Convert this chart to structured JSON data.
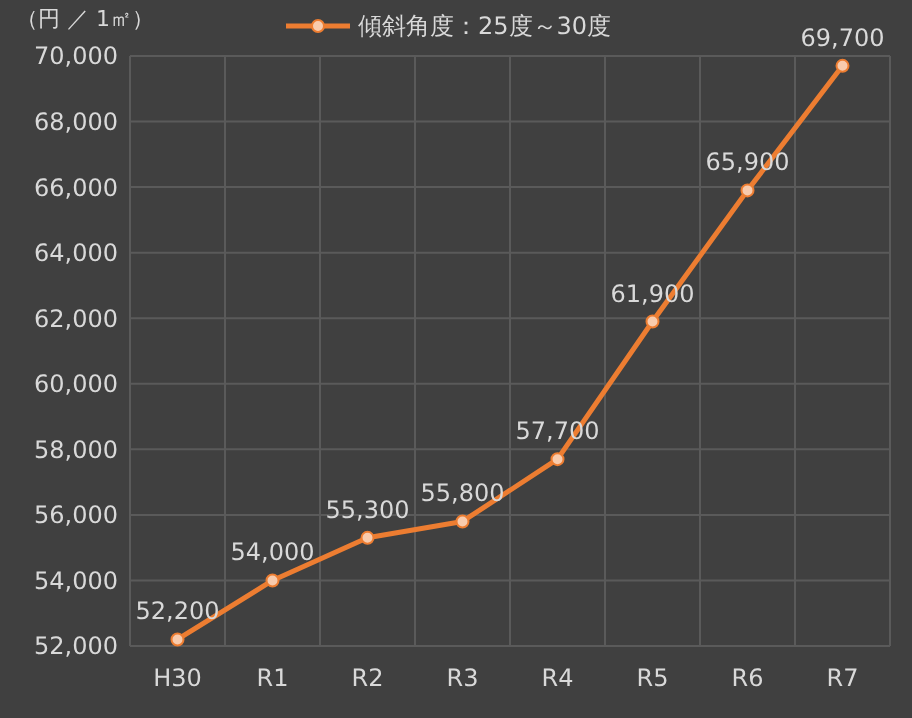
{
  "chart_data": {
    "type": "line",
    "ylabel": "（円 ／ 1㎡）",
    "categories": [
      "H30",
      "R1",
      "R2",
      "R3",
      "R4",
      "R5",
      "R6",
      "R7"
    ],
    "series": [
      {
        "name": "傾斜角度：25度～30度",
        "color": "#ed7d31",
        "values": [
          52200,
          54000,
          55300,
          55800,
          57700,
          61900,
          65900,
          69700
        ]
      }
    ],
    "ylim": [
      52000,
      70000
    ],
    "yticks": [
      {
        "value": 52000,
        "label": "52,000"
      },
      {
        "value": 54000,
        "label": "54,000"
      },
      {
        "value": 56000,
        "label": "56,000"
      },
      {
        "value": 58000,
        "label": "58,000"
      },
      {
        "value": 60000,
        "label": "60,000"
      },
      {
        "value": 62000,
        "label": "62,000"
      },
      {
        "value": 64000,
        "label": "64,000"
      },
      {
        "value": 66000,
        "label": "66,000"
      },
      {
        "value": 68000,
        "label": "68,000"
      },
      {
        "value": 70000,
        "label": "70,000"
      }
    ],
    "value_labels": [
      "52,200",
      "54,000",
      "55,300",
      "55,800",
      "57,700",
      "61,900",
      "65,900",
      "69,700"
    ],
    "grid": true,
    "legend": "top",
    "marker": "circle",
    "line_style": "solid"
  }
}
